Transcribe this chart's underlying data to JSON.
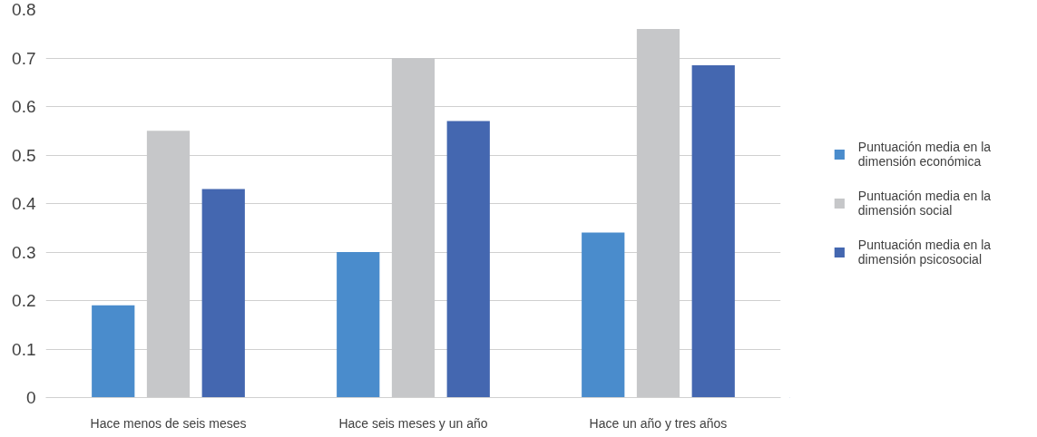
{
  "chart_data": {
    "type": "bar",
    "categories": [
      "Hace menos de seis meses",
      "Hace seis meses y un año",
      "Hace un año y tres años"
    ],
    "series": [
      {
        "name": "Puntuación media en la dimensión económica",
        "color": "#4a8ccc",
        "values": [
          0.19,
          0.3,
          0.34
        ]
      },
      {
        "name": "Puntuación media en la dimensión social",
        "color": "#c6c7c9",
        "values": [
          0.55,
          0.7,
          0.76
        ]
      },
      {
        "name": "Puntuación media en la dimensión psicosocial",
        "color": "#4467b0",
        "values": [
          0.43,
          0.57,
          0.685
        ]
      }
    ],
    "ylim": [
      0,
      0.8
    ],
    "yticks": [
      0,
      0.1,
      0.2,
      0.3,
      0.4,
      0.5,
      0.6,
      0.7,
      0.8
    ],
    "grid": "y",
    "legend": "right"
  }
}
